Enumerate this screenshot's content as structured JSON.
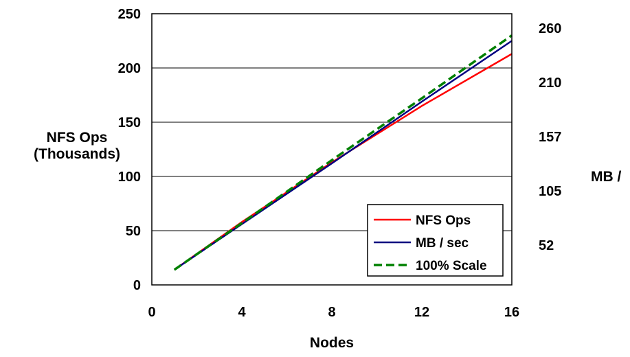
{
  "chart_data": {
    "type": "line",
    "title": "",
    "xlabel": "Nodes",
    "ylabel_left": [
      "NFS Ops",
      "(Thousands)"
    ],
    "ylabel_right": "MB /",
    "xlim": [
      0,
      16
    ],
    "ylim": [
      0,
      250
    ],
    "x_ticks": [
      "0",
      "4",
      "8",
      "12",
      "16"
    ],
    "y_ticks": [
      "0",
      "50",
      "100",
      "150",
      "200",
      "250"
    ],
    "y2_ticks": [
      "52",
      "105",
      "157",
      "210",
      "260"
    ],
    "grid": "horizontal",
    "legend_position": "bottom-right",
    "series": [
      {
        "name": "NFS Ops",
        "color": "#ff0000",
        "style": "solid",
        "x": [
          1,
          4,
          8,
          12,
          16
        ],
        "y": [
          14,
          58,
          113,
          165,
          213
        ]
      },
      {
        "name": "MB / sec",
        "color": "#000080",
        "style": "solid",
        "x": [
          1,
          4,
          8,
          12,
          16
        ],
        "y": [
          14,
          56,
          112,
          169,
          225
        ]
      },
      {
        "name": "100% Scale",
        "color": "#008000",
        "style": "dashed",
        "x": [
          1,
          4,
          8,
          12,
          16
        ],
        "y": [
          14,
          57,
          115,
          172,
          230
        ]
      }
    ]
  }
}
